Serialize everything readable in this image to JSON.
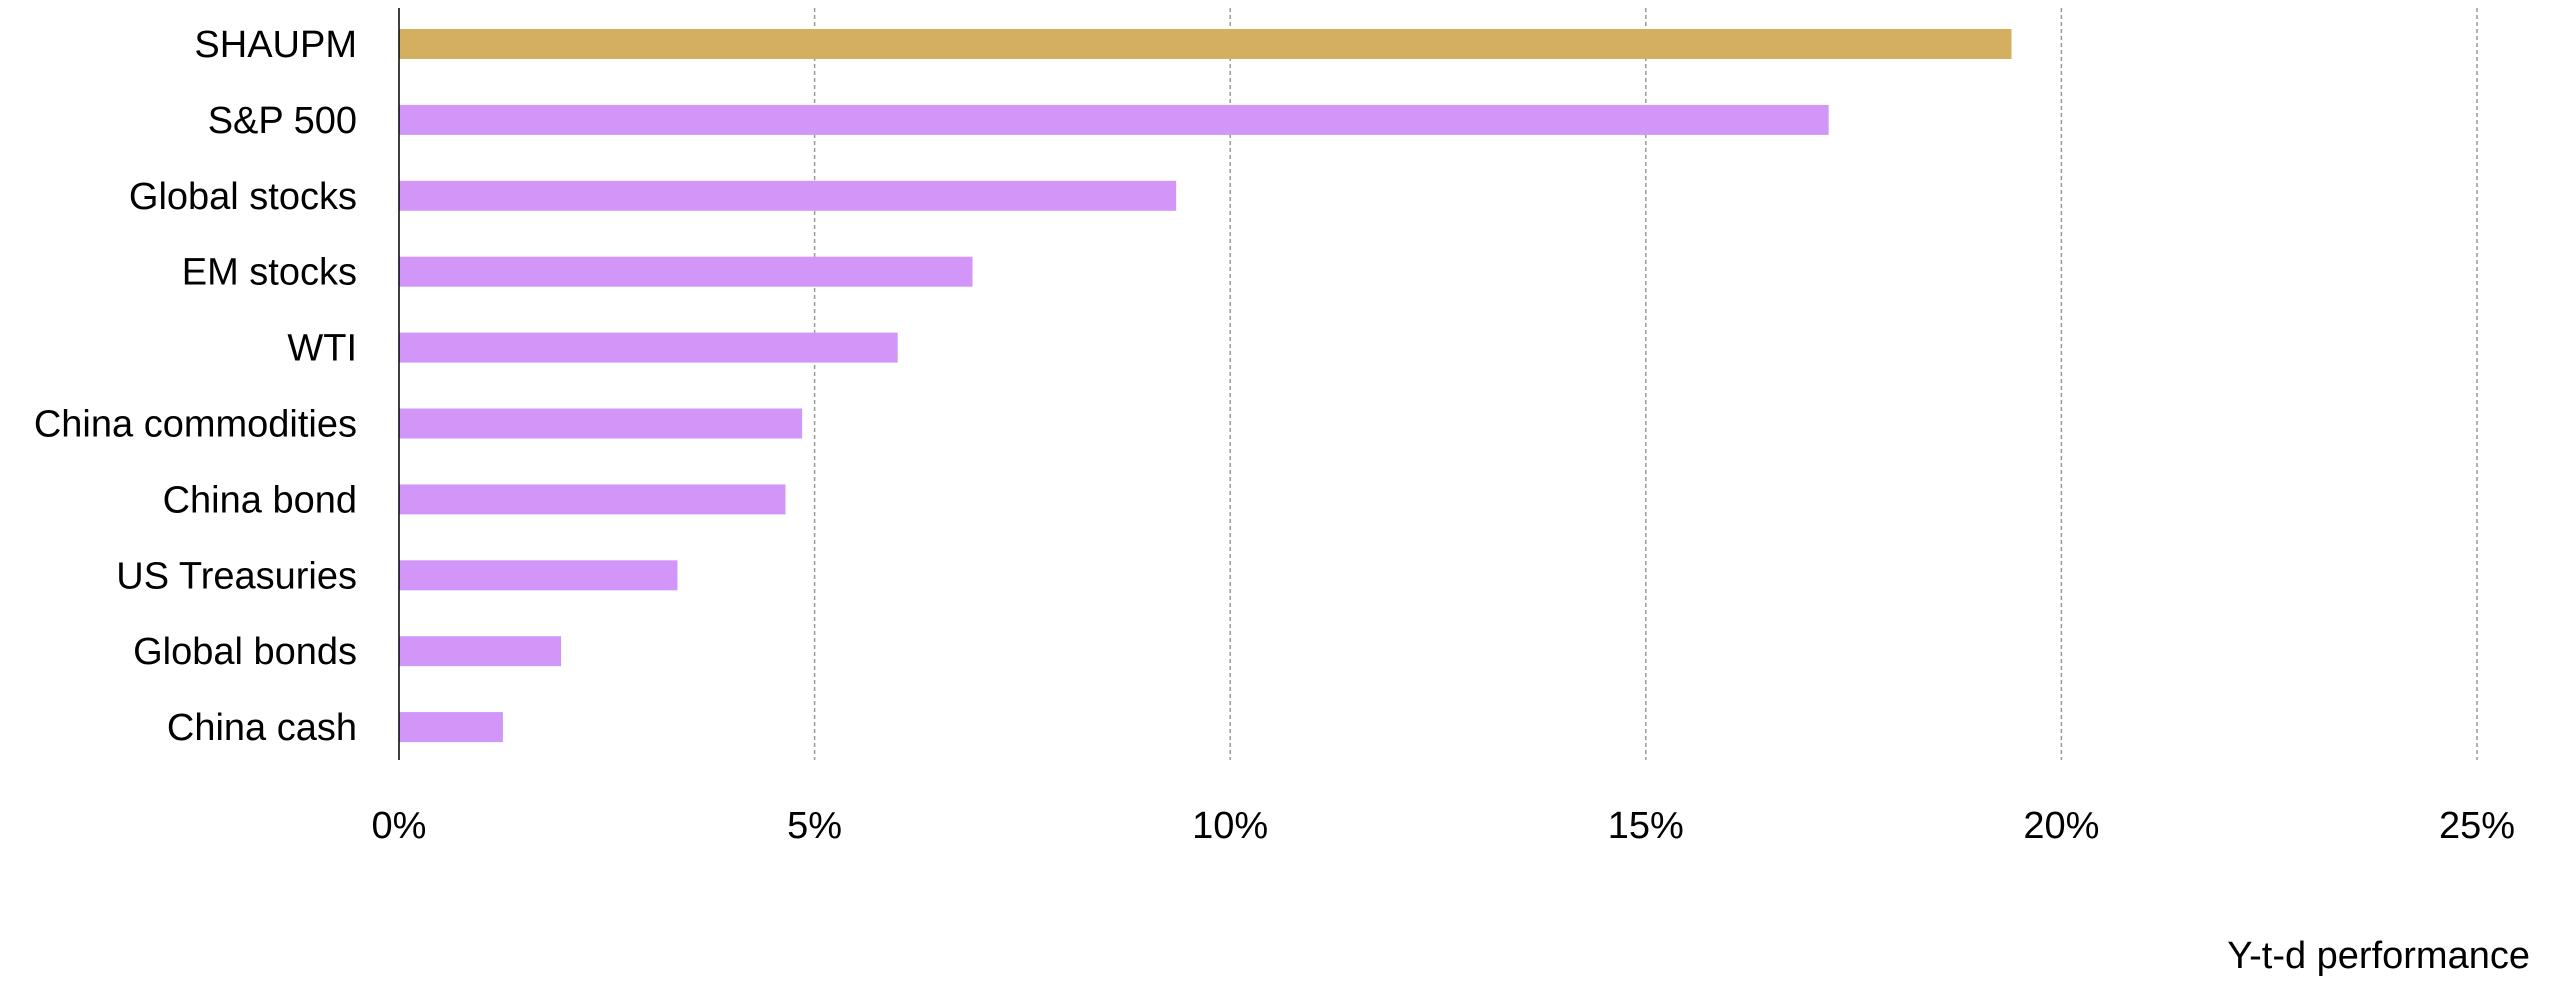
{
  "chart_data": {
    "type": "bar",
    "orientation": "horizontal",
    "categories": [
      "SHAUPM",
      "S&P 500",
      "Global stocks",
      "EM stocks",
      "WTI",
      "China commodities",
      "China bond",
      "US Treasuries",
      "Global bonds",
      "China cash"
    ],
    "values": [
      19.4,
      17.2,
      9.35,
      6.9,
      6.0,
      4.85,
      4.65,
      3.35,
      1.95,
      1.25
    ],
    "value_unit": "%",
    "xlabel": "Y-t-d performance",
    "ylabel": "",
    "xlim": [
      0,
      25
    ],
    "xticks": [
      0,
      5,
      10,
      15,
      20,
      25
    ],
    "xtick_labels": [
      "0%",
      "5%",
      "10%",
      "15%",
      "20%",
      "25%"
    ],
    "grid": "vertical dashed",
    "legend": "none",
    "colors": {
      "highlight": "#D4AF5F",
      "default": "#D296F8",
      "grid": "#999999",
      "axis": "#000000"
    },
    "highlight_category": "SHAUPM"
  }
}
